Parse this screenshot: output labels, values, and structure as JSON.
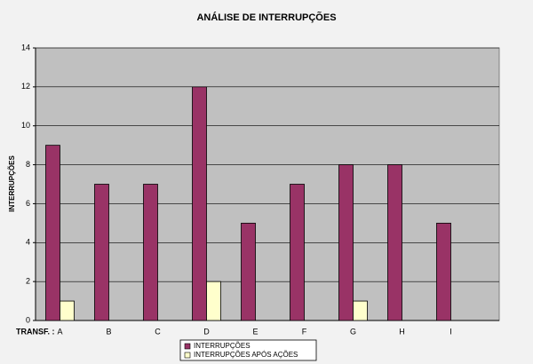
{
  "chart_data": {
    "type": "bar",
    "title": "ANÁLISE DE INTERRUPÇÕES",
    "y_label": "INTERRUPÇÕES",
    "x_label": "TRANSF. :",
    "categories": [
      "A",
      "B",
      "C",
      "D",
      "E",
      "F",
      "G",
      "H",
      "I"
    ],
    "series": [
      {
        "name": "INTERRUPÇÕES",
        "color": "#993366",
        "values": [
          9,
          7,
          7,
          12,
          5,
          7,
          8,
          8,
          5
        ]
      },
      {
        "name": "INTERRUPÇÕES APÓS AÇÕES",
        "color": "#ffffcc",
        "values": [
          1,
          0,
          0,
          2,
          0,
          0,
          1,
          0,
          0
        ]
      }
    ],
    "ylim": [
      0,
      14
    ],
    "yticks": [
      0,
      2,
      4,
      6,
      8,
      10,
      12,
      14
    ],
    "grid": true,
    "legend": "bottom"
  }
}
